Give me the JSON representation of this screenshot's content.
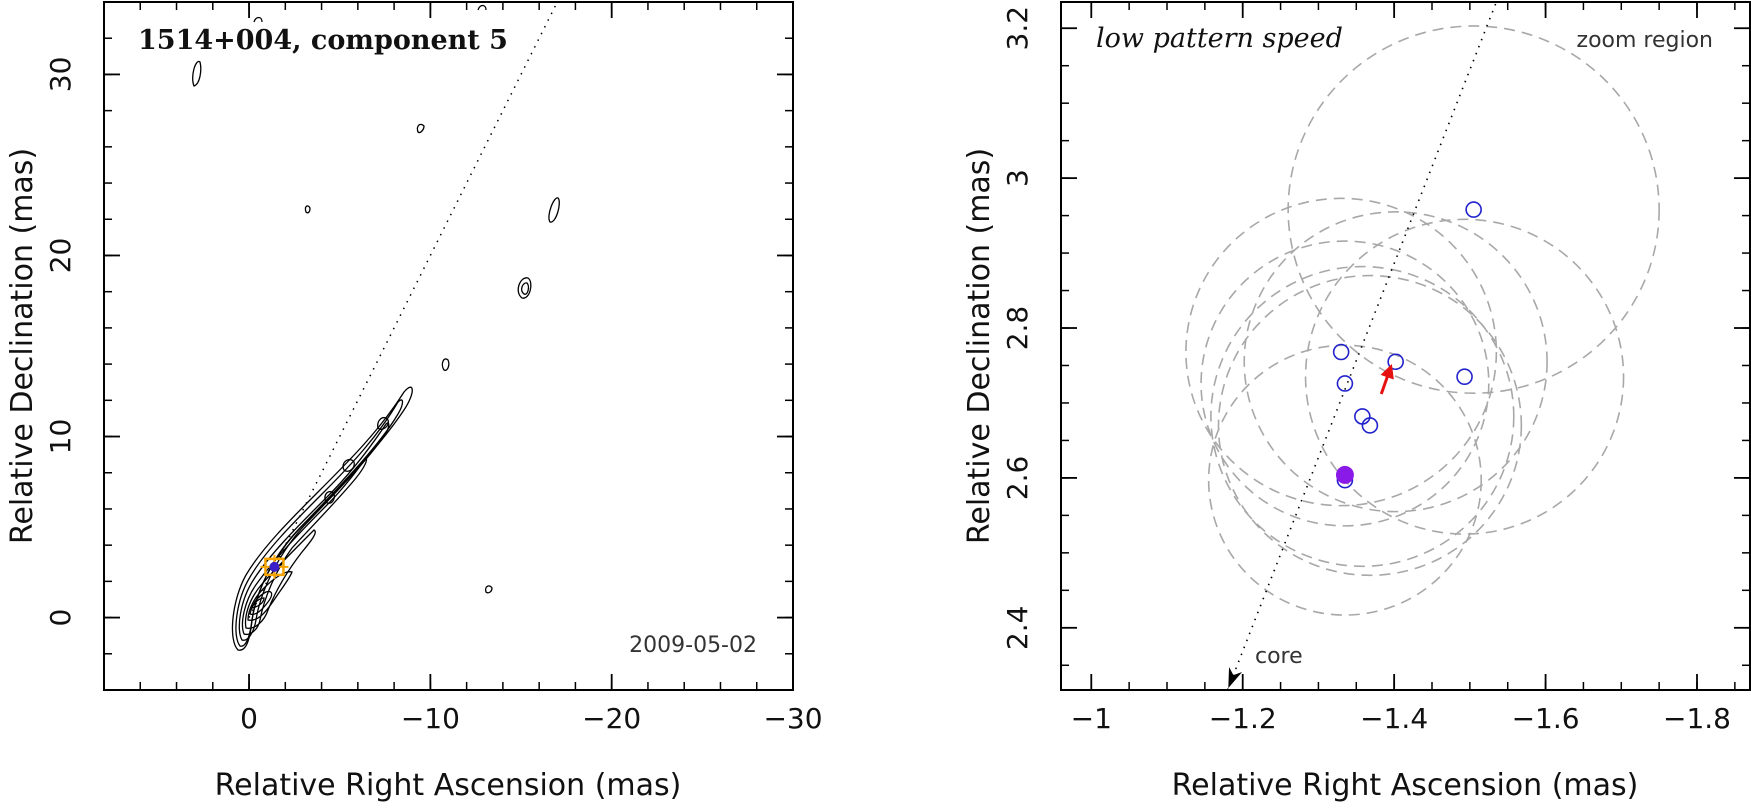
{
  "chart_data": [
    {
      "type": "contour",
      "title": "1514+004, component 5",
      "date": "2009-05-02",
      "xlabel": "Relative Right Ascension (mas)",
      "ylabel": "Relative Declination (mas)",
      "xlim": [
        8,
        -30
      ],
      "ylim": [
        -4,
        34
      ],
      "xticks": [
        0,
        -10,
        -20,
        -30
      ],
      "xtick_labels": [
        "0",
        "−10",
        "−20",
        "−30"
      ],
      "yticks": [
        0,
        10,
        20,
        30
      ],
      "ytick_labels": [
        "0",
        "10",
        "20",
        "30"
      ],
      "jet_axis": {
        "from": [
          0,
          0
        ],
        "to": [
          -17,
          34
        ]
      },
      "component_position": [
        -1.4,
        2.8
      ],
      "colors": {
        "contour": "#000000",
        "marker": "#f5a300",
        "component": "#3a1ec8"
      }
    },
    {
      "type": "scatter",
      "title": "low pattern speed",
      "region_label": "zoom region",
      "core_label": "core",
      "xlabel": "Relative Right Ascension (mas)",
      "ylabel": "Relative Declination (mas)",
      "xlim": [
        -0.96,
        -1.87
      ],
      "ylim": [
        2.317,
        3.235
      ],
      "xticks": [
        -1,
        -1.2,
        -1.4,
        -1.6,
        -1.8
      ],
      "xtick_labels": [
        "−1",
        "−1.2",
        "−1.4",
        "−1.6",
        "−1.8"
      ],
      "yticks": [
        2.4,
        2.6,
        2.8,
        3.0,
        3.2
      ],
      "ytick_labels": [
        "2.4",
        "2.6",
        "2.8",
        "3",
        "3.2"
      ],
      "jet_axis": {
        "from": [
          -1.18,
          2.317
        ],
        "to": [
          -1.535,
          3.235
        ]
      },
      "open_points": [
        {
          "x": -1.505,
          "y": 2.958
        },
        {
          "x": -1.33,
          "y": 2.768
        },
        {
          "x": -1.402,
          "y": 2.755
        },
        {
          "x": -1.493,
          "y": 2.735
        },
        {
          "x": -1.335,
          "y": 2.726
        },
        {
          "x": -1.358,
          "y": 2.682
        },
        {
          "x": -1.368,
          "y": 2.67
        },
        {
          "x": -1.335,
          "y": 2.597
        }
      ],
      "filled_point": {
        "x": -1.335,
        "y": 2.604
      },
      "motion_arrow": {
        "from": [
          -1.383,
          2.712
        ],
        "to": [
          -1.397,
          2.752
        ]
      },
      "uncertainty_circles": [
        {
          "x": -1.505,
          "y": 2.958,
          "r": 0.245
        },
        {
          "x": -1.33,
          "y": 2.768,
          "r": 0.205
        },
        {
          "x": -1.402,
          "y": 2.755,
          "r": 0.2
        },
        {
          "x": -1.493,
          "y": 2.735,
          "r": 0.21
        },
        {
          "x": -1.335,
          "y": 2.726,
          "r": 0.19
        },
        {
          "x": -1.358,
          "y": 2.682,
          "r": 0.2
        },
        {
          "x": -1.368,
          "y": 2.67,
          "r": 0.2
        },
        {
          "x": -1.335,
          "y": 2.597,
          "r": 0.18
        }
      ],
      "colors": {
        "points": "#2222cc",
        "filled": "#8a1ae8",
        "arrow": "#e51010",
        "circles": "#a8a8a8",
        "axis_line": "#000000"
      }
    }
  ]
}
